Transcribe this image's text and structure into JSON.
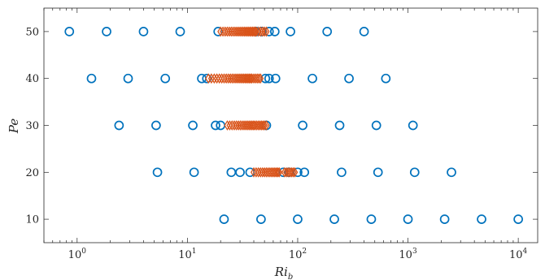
{
  "chart_data": {
    "type": "scatter",
    "title": "",
    "xlabel": "Ri",
    "xlabel_sub": "b",
    "ylabel": "Pe",
    "xscale": "log",
    "xlim": [
      0.5,
      15000
    ],
    "ylim": [
      5,
      55
    ],
    "grid": false,
    "legend": "none",
    "yticks": [
      10,
      20,
      30,
      40,
      50
    ],
    "xticks": [
      {
        "value": 1,
        "base": "10",
        "exp": "0"
      },
      {
        "value": 10,
        "base": "10",
        "exp": "1"
      },
      {
        "value": 100,
        "base": "10",
        "exp": "2"
      },
      {
        "value": 1000,
        "base": "10",
        "exp": "3"
      },
      {
        "value": 10000,
        "base": "10",
        "exp": "4"
      }
    ],
    "colors": {
      "circle": "#0072BD",
      "diamond": "#D95319",
      "axis": "#262626"
    },
    "series": [
      {
        "marker": "circle",
        "points": [
          [
            0.85,
            50
          ],
          [
            1.85,
            50
          ],
          [
            4.0,
            50
          ],
          [
            8.6,
            50
          ],
          [
            19,
            50
          ],
          [
            42,
            50
          ],
          [
            47,
            50
          ],
          [
            55,
            50
          ],
          [
            62,
            50
          ],
          [
            86,
            50
          ],
          [
            185,
            50
          ],
          [
            400,
            50
          ],
          [
            1.35,
            40
          ],
          [
            2.9,
            40
          ],
          [
            6.3,
            40
          ],
          [
            13.5,
            40
          ],
          [
            15,
            40
          ],
          [
            51,
            40
          ],
          [
            55,
            40
          ],
          [
            63,
            40
          ],
          [
            136,
            40
          ],
          [
            292,
            40
          ],
          [
            630,
            40
          ],
          [
            2.4,
            30
          ],
          [
            5.2,
            30
          ],
          [
            11.2,
            30
          ],
          [
            18,
            30
          ],
          [
            20,
            30
          ],
          [
            52,
            30
          ],
          [
            111,
            30
          ],
          [
            240,
            30
          ],
          [
            517,
            30
          ],
          [
            1110,
            30
          ],
          [
            5.35,
            20
          ],
          [
            11.5,
            20
          ],
          [
            25,
            20
          ],
          [
            30,
            20
          ],
          [
            37,
            20
          ],
          [
            74,
            20
          ],
          [
            83,
            20
          ],
          [
            100,
            20
          ],
          [
            115,
            20
          ],
          [
            250,
            20
          ],
          [
            535,
            20
          ],
          [
            1150,
            20
          ],
          [
            2480,
            20
          ],
          [
            21.5,
            10
          ],
          [
            46.5,
            10
          ],
          [
            100,
            10
          ],
          [
            215,
            10
          ],
          [
            465,
            10
          ],
          [
            1000,
            10
          ],
          [
            2150,
            10
          ],
          [
            4650,
            10
          ],
          [
            10000,
            10
          ]
        ]
      },
      {
        "marker": "diamond",
        "points": [
          [
            20,
            50
          ],
          [
            21,
            50
          ],
          [
            22,
            50
          ],
          [
            23,
            50
          ],
          [
            24,
            50
          ],
          [
            25,
            50
          ],
          [
            26,
            50
          ],
          [
            27,
            50
          ],
          [
            28,
            50
          ],
          [
            29,
            50
          ],
          [
            30,
            50
          ],
          [
            31,
            50
          ],
          [
            32,
            50
          ],
          [
            33,
            50
          ],
          [
            34,
            50
          ],
          [
            35,
            50
          ],
          [
            36,
            50
          ],
          [
            37,
            50
          ],
          [
            38,
            50
          ],
          [
            39,
            50
          ],
          [
            40,
            50
          ],
          [
            41,
            50
          ],
          [
            42,
            50
          ],
          [
            44,
            50
          ],
          [
            46,
            50
          ],
          [
            48,
            50
          ],
          [
            50,
            50
          ],
          [
            52,
            50
          ],
          [
            15.5,
            40
          ],
          [
            16.5,
            40
          ],
          [
            17.5,
            40
          ],
          [
            18.5,
            40
          ],
          [
            19.5,
            40
          ],
          [
            20.5,
            40
          ],
          [
            21.5,
            40
          ],
          [
            22.5,
            40
          ],
          [
            23.5,
            40
          ],
          [
            24.5,
            40
          ],
          [
            25.5,
            40
          ],
          [
            26.5,
            40
          ],
          [
            27.5,
            40
          ],
          [
            28.5,
            40
          ],
          [
            29.5,
            40
          ],
          [
            30.5,
            40
          ],
          [
            31.5,
            40
          ],
          [
            32.5,
            40
          ],
          [
            33.5,
            40
          ],
          [
            34.5,
            40
          ],
          [
            35.5,
            40
          ],
          [
            36.5,
            40
          ],
          [
            37.5,
            40
          ],
          [
            38.5,
            40
          ],
          [
            40,
            40
          ],
          [
            41.5,
            40
          ],
          [
            43,
            40
          ],
          [
            44.5,
            40
          ],
          [
            46,
            40
          ],
          [
            23,
            30
          ],
          [
            24.2,
            30
          ],
          [
            25.4,
            30
          ],
          [
            26.6,
            30
          ],
          [
            27.8,
            30
          ],
          [
            29,
            30
          ],
          [
            30.2,
            30
          ],
          [
            31.4,
            30
          ],
          [
            32.6,
            30
          ],
          [
            33.8,
            30
          ],
          [
            35,
            30
          ],
          [
            36.2,
            30
          ],
          [
            37.4,
            30
          ],
          [
            38.6,
            30
          ],
          [
            39.8,
            30
          ],
          [
            41,
            30
          ],
          [
            42.5,
            30
          ],
          [
            44,
            30
          ],
          [
            45.5,
            30
          ],
          [
            47,
            30
          ],
          [
            48.5,
            30
          ],
          [
            50,
            30
          ],
          [
            52,
            30
          ],
          [
            40,
            20
          ],
          [
            42,
            20
          ],
          [
            44,
            20
          ],
          [
            46,
            20
          ],
          [
            48,
            20
          ],
          [
            50,
            20
          ],
          [
            52,
            20
          ],
          [
            54,
            20
          ],
          [
            56,
            20
          ],
          [
            58,
            20
          ],
          [
            60,
            20
          ],
          [
            62,
            20
          ],
          [
            64,
            20
          ],
          [
            66,
            20
          ],
          [
            68,
            20
          ],
          [
            76,
            20
          ],
          [
            79,
            20
          ],
          [
            82,
            20
          ],
          [
            85,
            20
          ],
          [
            88,
            20
          ],
          [
            91,
            20
          ],
          [
            94,
            20
          ]
        ]
      }
    ]
  }
}
